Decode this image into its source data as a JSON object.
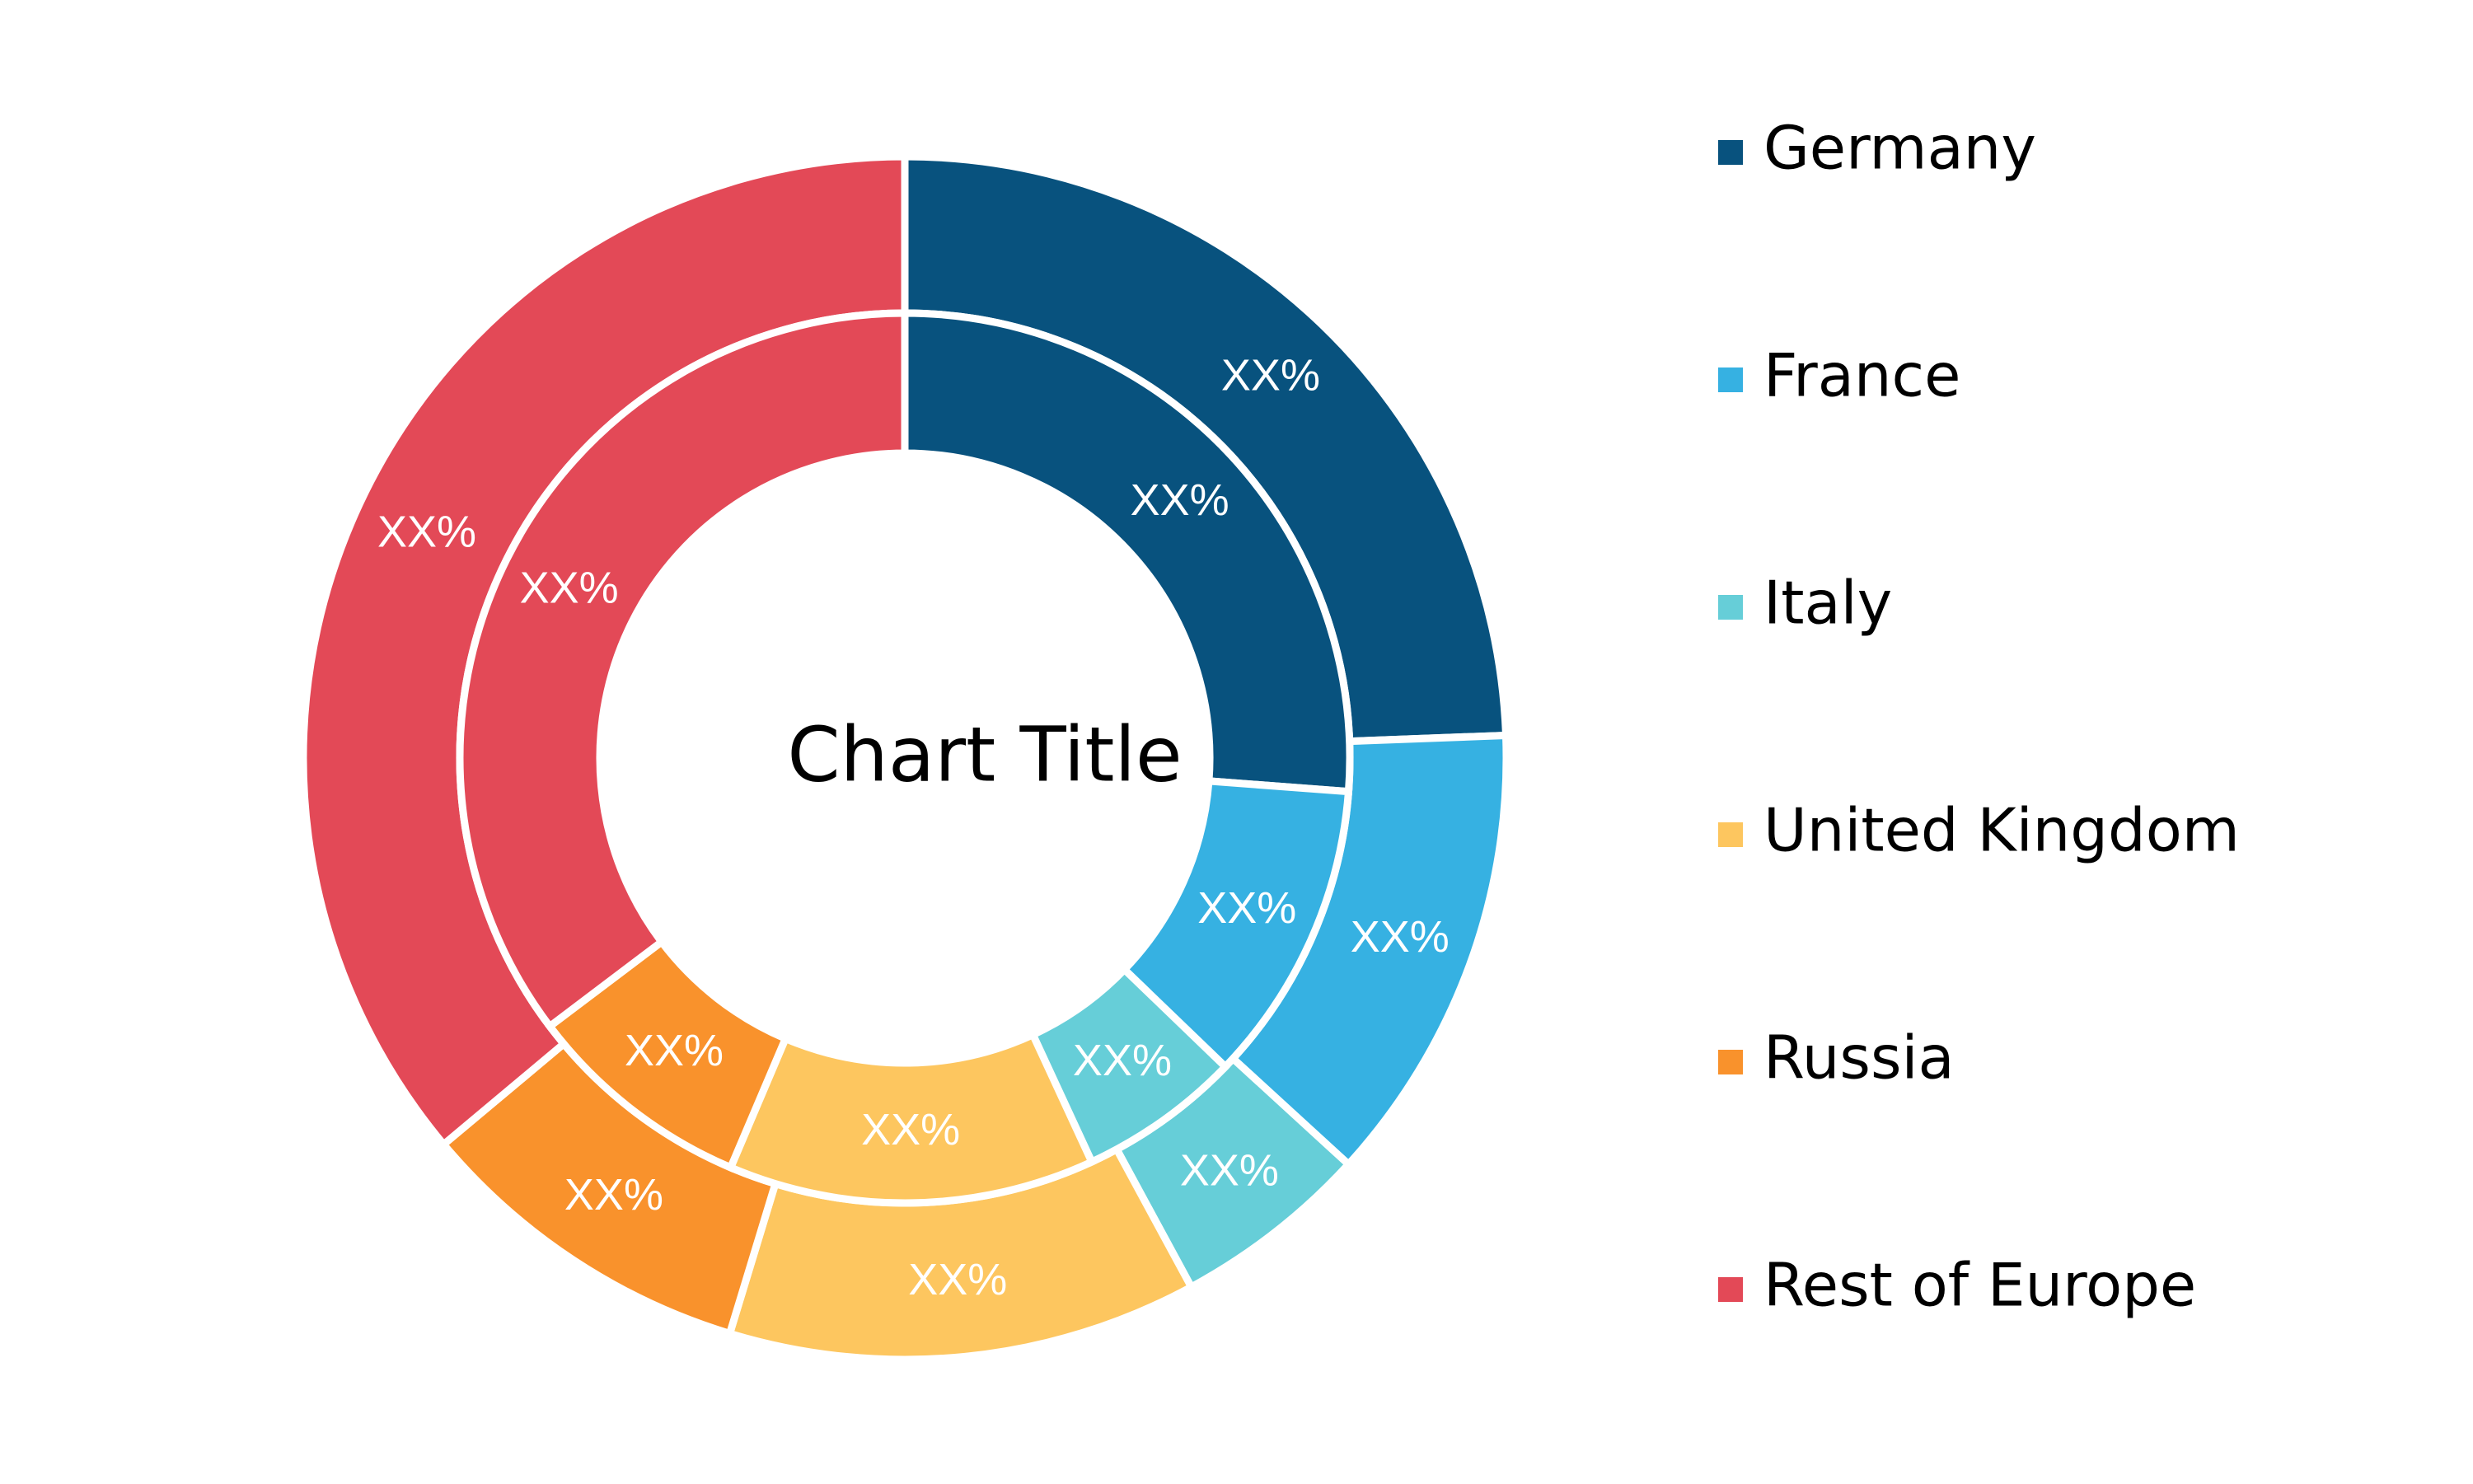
{
  "chart_data": {
    "type": "pie",
    "variant": "double-donut",
    "title": "Chart Title",
    "categories": [
      "Germany",
      "France",
      "Italy",
      "United Kingdom",
      "Russia",
      "Rest of Europe"
    ],
    "colors": [
      "#08527E",
      "#36B1E2",
      "#66CED8",
      "#FDC65F",
      "#F9922C",
      "#E34957"
    ],
    "series": [
      {
        "ring": "outer",
        "values": [
          24.4,
          12.4,
          5.3,
          12.6,
          9.2,
          36.1
        ],
        "labels": [
          "XX%",
          "XX%",
          "XX%",
          "XX%",
          "XX%",
          "XX%"
        ]
      },
      {
        "ring": "inner",
        "values": [
          26.2,
          11.0,
          5.9,
          13.3,
          8.3,
          35.3
        ],
        "labels": [
          "XX%",
          "XX%",
          "XX%",
          "XX%",
          "XX%",
          "XX%"
        ]
      }
    ],
    "legend_position": "right",
    "start_angle_deg": 0,
    "direction": "clockwise"
  }
}
